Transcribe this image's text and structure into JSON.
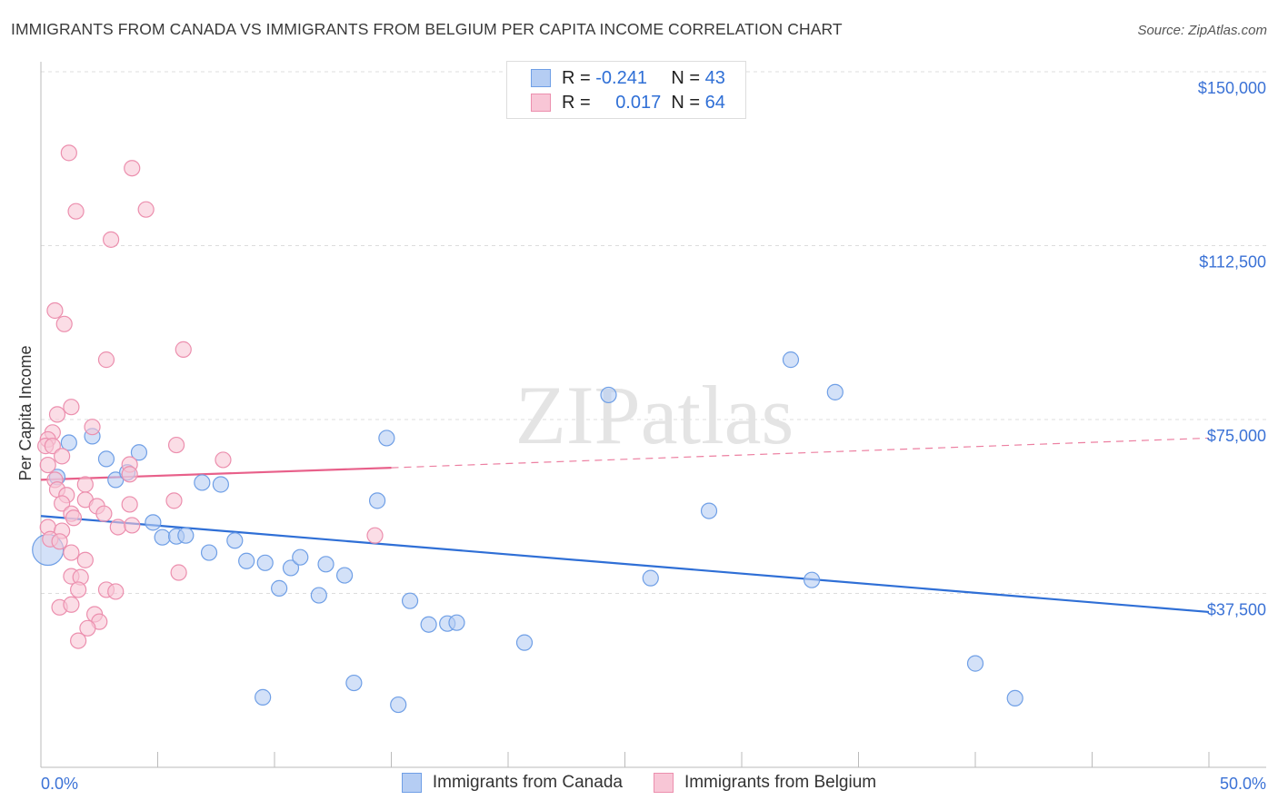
{
  "chart_data": {
    "type": "scatter",
    "title": "IMMIGRANTS FROM CANADA VS IMMIGRANTS FROM BELGIUM PER CAPITA INCOME CORRELATION CHART",
    "source": "Source: ZipAtlas.com",
    "xlabel": "",
    "ylabel": "Per Capita Income",
    "xlim": [
      0,
      50
    ],
    "ylim": [
      0,
      150000
    ],
    "x_tick_labels": [
      "0.0%",
      "50.0%"
    ],
    "x_ticks": [
      0,
      5,
      10,
      15,
      20,
      25,
      30,
      35,
      40,
      45,
      50
    ],
    "y_ticks": [
      37500,
      75000,
      112500,
      150000
    ],
    "y_tick_labels": [
      "$37,500",
      "$75,000",
      "$112,500",
      "$150,000"
    ],
    "grid": true,
    "watermark": "ZIPatlas",
    "legend_placement": "top-center",
    "series": [
      {
        "name": "Immigrants from Canada",
        "color": "#6f9fe6",
        "fill": "#b5cdf3",
        "line_color": "#2f6fd6",
        "R": "-0.241",
        "N": "43",
        "trend": {
          "x": [
            0,
            50
          ],
          "y": [
            54200,
            33500
          ]
        },
        "points": [
          [
            0.3,
            46900
          ],
          [
            0.7,
            62600
          ],
          [
            1.2,
            70000
          ],
          [
            2.2,
            71400
          ],
          [
            2.8,
            66500
          ],
          [
            3.2,
            62000
          ],
          [
            3.7,
            63600
          ],
          [
            4.2,
            67900
          ],
          [
            4.8,
            52800
          ],
          [
            5.2,
            49600
          ],
          [
            5.8,
            49800
          ],
          [
            6.2,
            50000
          ],
          [
            6.9,
            61400
          ],
          [
            7.2,
            46300
          ],
          [
            7.7,
            61000
          ],
          [
            8.3,
            48900
          ],
          [
            8.8,
            44500
          ],
          [
            9.6,
            44100
          ],
          [
            10.2,
            38600
          ],
          [
            10.7,
            43000
          ],
          [
            11.1,
            45300
          ],
          [
            11.9,
            37100
          ],
          [
            12.2,
            43800
          ],
          [
            13.0,
            41400
          ],
          [
            13.4,
            18200
          ],
          [
            14.4,
            57500
          ],
          [
            14.8,
            71000
          ],
          [
            15.3,
            13500
          ],
          [
            15.8,
            35900
          ],
          [
            16.6,
            30800
          ],
          [
            17.4,
            31000
          ],
          [
            17.8,
            31200
          ],
          [
            20.7,
            26900
          ],
          [
            24.3,
            80300
          ],
          [
            26.1,
            40800
          ],
          [
            28.6,
            55300
          ],
          [
            32.1,
            87900
          ],
          [
            33.0,
            40400
          ],
          [
            34.0,
            80900
          ],
          [
            40.0,
            22400
          ],
          [
            41.7,
            14900
          ],
          [
            9.5,
            15100
          ]
        ]
      },
      {
        "name": "Immigrants from Belgium",
        "color": "#ec8fae",
        "fill": "#f8c6d6",
        "line_color": "#e8608a",
        "R": "0.017",
        "N": "64",
        "trend": {
          "x": [
            0,
            15
          ],
          "y": [
            62000,
            64600
          ],
          "dashed_to": {
            "x": 50,
            "y": 71000
          }
        },
        "points": [
          [
            1.2,
            132500
          ],
          [
            3.9,
            129200
          ],
          [
            1.5,
            119900
          ],
          [
            4.5,
            120300
          ],
          [
            3.0,
            113800
          ],
          [
            0.6,
            98500
          ],
          [
            1.0,
            95600
          ],
          [
            2.8,
            87900
          ],
          [
            6.1,
            90100
          ],
          [
            1.3,
            77700
          ],
          [
            0.7,
            76100
          ],
          [
            2.2,
            73400
          ],
          [
            0.5,
            72200
          ],
          [
            0.3,
            70700
          ],
          [
            0.2,
            69300
          ],
          [
            0.5,
            69300
          ],
          [
            0.9,
            67100
          ],
          [
            5.8,
            69500
          ],
          [
            7.8,
            66300
          ],
          [
            3.8,
            65300
          ],
          [
            0.3,
            65200
          ],
          [
            3.8,
            63200
          ],
          [
            0.6,
            62000
          ],
          [
            1.9,
            61000
          ],
          [
            0.7,
            59900
          ],
          [
            1.1,
            58700
          ],
          [
            0.9,
            56900
          ],
          [
            1.9,
            57700
          ],
          [
            3.8,
            56700
          ],
          [
            5.7,
            57500
          ],
          [
            2.4,
            56300
          ],
          [
            2.7,
            54700
          ],
          [
            1.3,
            54700
          ],
          [
            1.4,
            53800
          ],
          [
            3.3,
            51800
          ],
          [
            3.9,
            52200
          ],
          [
            0.3,
            51800
          ],
          [
            0.9,
            51000
          ],
          [
            0.4,
            49200
          ],
          [
            0.8,
            48700
          ],
          [
            1.3,
            46300
          ],
          [
            1.9,
            44700
          ],
          [
            5.9,
            42000
          ],
          [
            1.3,
            41200
          ],
          [
            1.7,
            41000
          ],
          [
            1.6,
            38300
          ],
          [
            2.8,
            38300
          ],
          [
            3.2,
            37900
          ],
          [
            0.8,
            34500
          ],
          [
            1.3,
            35100
          ],
          [
            2.3,
            33000
          ],
          [
            2.5,
            31400
          ],
          [
            2.0,
            30000
          ],
          [
            1.6,
            27300
          ],
          [
            14.3,
            50000
          ]
        ]
      }
    ]
  },
  "legend": {
    "r_label": "R =",
    "n_label": "N =",
    "canada_r": "-0.241",
    "canada_n": "43",
    "belgium_r": "0.017",
    "belgium_n": "64"
  }
}
